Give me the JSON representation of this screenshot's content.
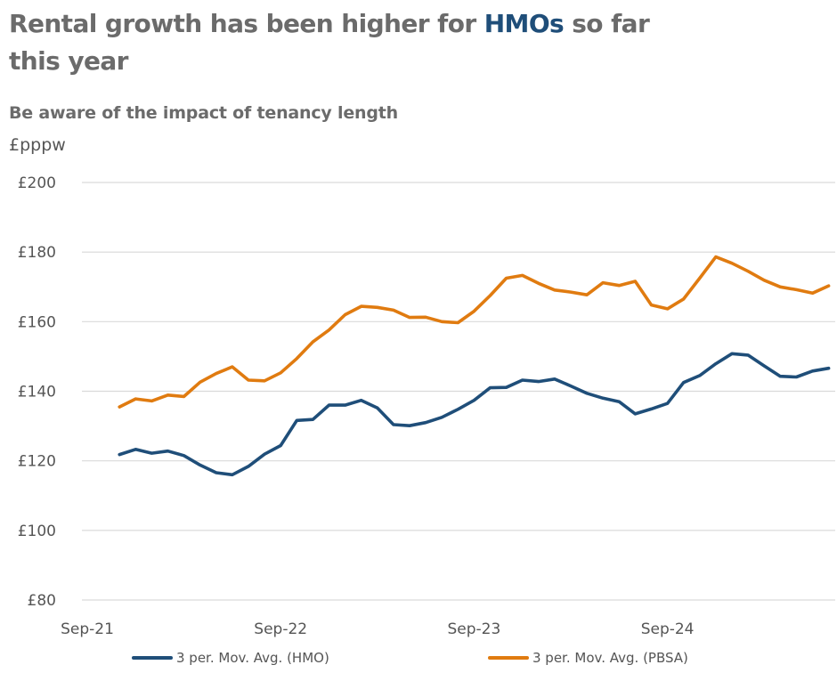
{
  "header": {
    "title_before": "Rental growth has been higher for ",
    "title_highlight": "HMOs",
    "title_after": " so far this year",
    "subtitle": "Be aware of the impact of tenancy length",
    "unit": "£pppw"
  },
  "colors": {
    "hmo": "#1f4e79",
    "pbsa": "#e07b10",
    "grid": "#d9d9d9",
    "title_accent": "#1f4e79"
  },
  "chart_data": {
    "type": "line",
    "title": "Rental growth has been higher for HMOs so far this year",
    "subtitle": "Be aware of the impact of tenancy length",
    "ylabel": "£pppw",
    "ylim": [
      80,
      200
    ],
    "yticks": [
      80,
      100,
      120,
      140,
      160,
      180,
      200
    ],
    "ytick_labels": [
      "£80",
      "£100",
      "£120",
      "£140",
      "£160",
      "£180",
      "£200"
    ],
    "x_range_months": "Sep-21 to Jun-25",
    "xtick_labels": [
      "Sep-21",
      "Sep-22",
      "Sep-23",
      "Sep-24"
    ],
    "grid": "horizontal",
    "legend_position": "bottom",
    "series": [
      {
        "name": "3 per. Mov. Avg. (HMO)",
        "color": "#1f4e79",
        "start": "Nov-21",
        "values": [
          121.8,
          123.3,
          122.2,
          122.8,
          121.5,
          118.8,
          116.6,
          116.0,
          118.4,
          121.9,
          124.4,
          131.6,
          131.9,
          136.0,
          136.0,
          137.4,
          135.2,
          130.4,
          130.1,
          131.0,
          132.5,
          134.8,
          137.4,
          141.0,
          141.1,
          143.2,
          142.8,
          143.5,
          141.5,
          139.4,
          138.0,
          137.0,
          133.5,
          134.9,
          136.5,
          142.5,
          144.5,
          147.9,
          150.8,
          150.4,
          147.3,
          144.3,
          144.1,
          145.8,
          146.6
        ]
      },
      {
        "name": "3 per. Mov. Avg. (PBSA)",
        "color": "#e07b10",
        "start": "Nov-21",
        "values": [
          135.5,
          137.8,
          137.2,
          138.9,
          138.5,
          142.6,
          145.1,
          147.0,
          143.2,
          143.0,
          145.3,
          149.4,
          154.2,
          157.6,
          162.0,
          164.4,
          164.1,
          163.3,
          161.2,
          161.3,
          160.0,
          159.7,
          163.0,
          167.5,
          172.5,
          173.3,
          171.0,
          169.1,
          168.5,
          167.7,
          171.2,
          170.4,
          171.6,
          164.8,
          163.7,
          166.5,
          172.5,
          178.6,
          176.8,
          174.5,
          171.9,
          170.0,
          169.2,
          168.2,
          170.3
        ]
      }
    ]
  }
}
